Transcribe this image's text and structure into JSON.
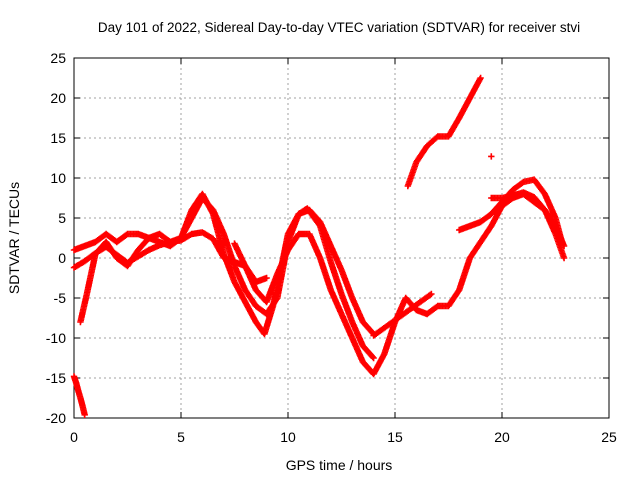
{
  "chart_data": {
    "type": "scatter",
    "title": "Day 101 of 2022, Sidereal Day-to-day VTEC variation (SDTVAR) for receiver stvi",
    "xlabel": "GPS time / hours",
    "ylabel": "SDTVAR / TECUs",
    "xlim": [
      0,
      25
    ],
    "ylim": [
      -20,
      25
    ],
    "xticks": [
      0,
      5,
      10,
      15,
      20,
      25
    ],
    "yticks": [
      -20,
      -15,
      -10,
      -5,
      0,
      5,
      10,
      15,
      20,
      25
    ],
    "grid": true,
    "marker": "plus",
    "color": "#ff0000",
    "series": [
      {
        "x": [
          0.0,
          0.1,
          0.2,
          0.3,
          0.4,
          0.5
        ],
        "y": [
          -14.8,
          -15.6,
          -16.6,
          -17.5,
          -18.5,
          -19.6
        ]
      },
      {
        "x": [
          0.0,
          0.5,
          1.0,
          1.5,
          2.0,
          2.5,
          3.0,
          3.5,
          4.0,
          4.5,
          5.0,
          5.5,
          6.0,
          6.5,
          7.0,
          7.5,
          8.0,
          8.5,
          9.0,
          9.5,
          10.0,
          10.5,
          11.0,
          11.5,
          12.0,
          12.5,
          13.0,
          13.5,
          14.0,
          14.5,
          15.0,
          15.5,
          16.0,
          16.5,
          17.0,
          17.5,
          18.0,
          18.5,
          19.0,
          19.5,
          20.0,
          20.5,
          21.0,
          21.5,
          22.0,
          22.5,
          22.9
        ],
        "y": [
          -1.2,
          -0.4,
          0.6,
          1.4,
          0.4,
          -0.6,
          0.2,
          1.0,
          1.6,
          2.0,
          2.2,
          3.0,
          3.2,
          2.4,
          0.0,
          -0.5,
          -1.0,
          -4.0,
          -5.5,
          -2.0,
          1.0,
          3.0,
          3.0,
          0.0,
          -4.0,
          -7.0,
          -10.0,
          -13.0,
          -14.5,
          -12.0,
          -8.0,
          -5.0,
          -6.5,
          -7.0,
          -6.0,
          -6.0,
          -4.0,
          0.0,
          2.0,
          4.0,
          6.5,
          7.5,
          8.0,
          7.0,
          6.0,
          4.0,
          1.5
        ]
      },
      {
        "x": [
          0.3,
          0.6,
          1.0,
          1.5,
          2.0,
          2.5,
          3.0,
          3.5,
          4.0,
          4.5,
          5.0,
          5.5,
          6.0,
          6.5,
          7.0,
          7.5,
          8.0,
          8.5,
          8.9,
          9.3,
          9.7,
          10.0,
          10.5,
          10.9,
          11.5,
          12.0,
          12.5,
          13.0,
          13.5,
          14.0
        ],
        "y": [
          -8.0,
          -4.5,
          0.5,
          2.0,
          0.0,
          -1.0,
          1.0,
          2.5,
          2.0,
          1.5,
          2.5,
          6.0,
          8.0,
          5.5,
          0.5,
          -3.0,
          -5.5,
          -8.0,
          -9.5,
          -6.0,
          -1.0,
          3.0,
          5.5,
          6.2,
          4.0,
          -0.5,
          -4.5,
          -8.0,
          -11.0,
          -12.5
        ]
      },
      {
        "x": [
          0.0,
          0.5,
          1.0,
          1.5,
          2.0,
          2.5,
          3.0,
          3.5,
          4.0,
          4.5,
          5.0,
          5.5,
          6.0,
          6.5,
          7.0,
          7.5,
          8.0,
          8.5,
          9.0,
          9.5,
          10.0,
          10.5,
          11.0,
          11.5,
          12.0,
          12.5,
          13.0,
          13.5,
          14.0
        ],
        "y": [
          1.0,
          1.5,
          2.0,
          3.0,
          2.0,
          3.0,
          3.0,
          2.5,
          3.0,
          2.0,
          2.5,
          5.0,
          7.5,
          6.0,
          3.0,
          -1.0,
          -4.0,
          -6.0,
          -7.0,
          -5.0,
          2.0,
          5.5,
          6.0,
          4.5,
          1.5,
          -1.5,
          -5.0,
          -8.0,
          -9.5
        ]
      },
      {
        "x": [
          15.6,
          16.0,
          16.5,
          17.0,
          17.5,
          18.0,
          18.5,
          19.0
        ],
        "y": [
          9.0,
          12.0,
          14.0,
          15.2,
          15.2,
          17.5,
          20.0,
          22.5
        ]
      },
      {
        "x": [
          19.5
        ],
        "y": [
          12.7
        ]
      },
      {
        "x": [
          18.0,
          18.5,
          19.0,
          19.5,
          20.0,
          20.5,
          21.0,
          21.5,
          22.0,
          22.5,
          22.8
        ],
        "y": [
          3.5,
          4.0,
          4.5,
          5.5,
          7.0,
          8.5,
          9.5,
          9.8,
          8.0,
          5.0,
          2.0
        ]
      },
      {
        "x": [
          19.5,
          20.0,
          20.5,
          21.0,
          21.5,
          22.0,
          22.5,
          22.9
        ],
        "y": [
          7.5,
          7.5,
          7.8,
          8.2,
          7.6,
          6.0,
          3.0,
          0.0
        ]
      },
      {
        "x": [
          7.5,
          8.0,
          8.5,
          9.0
        ],
        "y": [
          1.8,
          -1.0,
          -3.0,
          -2.5
        ]
      },
      {
        "x": [
          14.0,
          16.7
        ],
        "y": [
          -9.7,
          -4.5
        ]
      }
    ]
  }
}
